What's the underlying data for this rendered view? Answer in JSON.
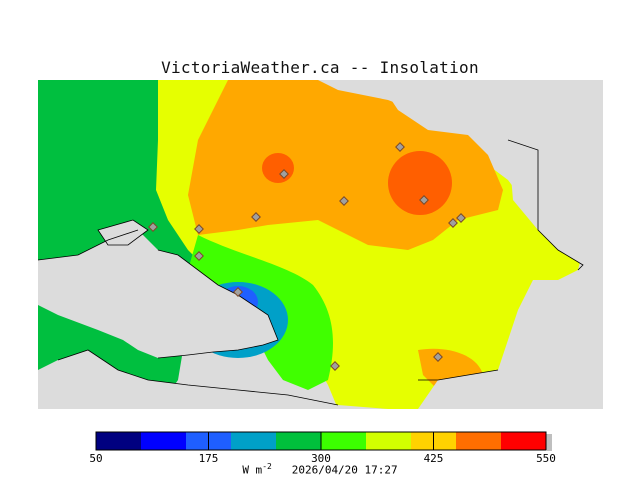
{
  "title": "VictoriaWeather.ca -- Insolation",
  "legend": {
    "ticks": [
      "50",
      "175",
      "300",
      "425",
      "550"
    ],
    "colors": [
      "#000080",
      "#0000ff",
      "#1f5fff",
      "#00a0c8",
      "#00c03c",
      "#3cff00",
      "#d2ff00",
      "#ffd200",
      "#ff6e00",
      "#ff0000"
    ],
    "unit_prefix": "W m",
    "unit_exp": "-2",
    "timestamp": "2026/04/20 17:27"
  },
  "colors": {
    "land_mask": "#dcdcdc",
    "level_green": "#00bf3f",
    "level_lightgreen": "#40ff00",
    "level_yellow": "#e6ff00",
    "level_orange": "#ffa800",
    "level_deeporange": "#ff5f00",
    "level_cyan": "#00a0c8",
    "level_blue": "#1f5fff",
    "station": "#a0a0a0"
  }
}
